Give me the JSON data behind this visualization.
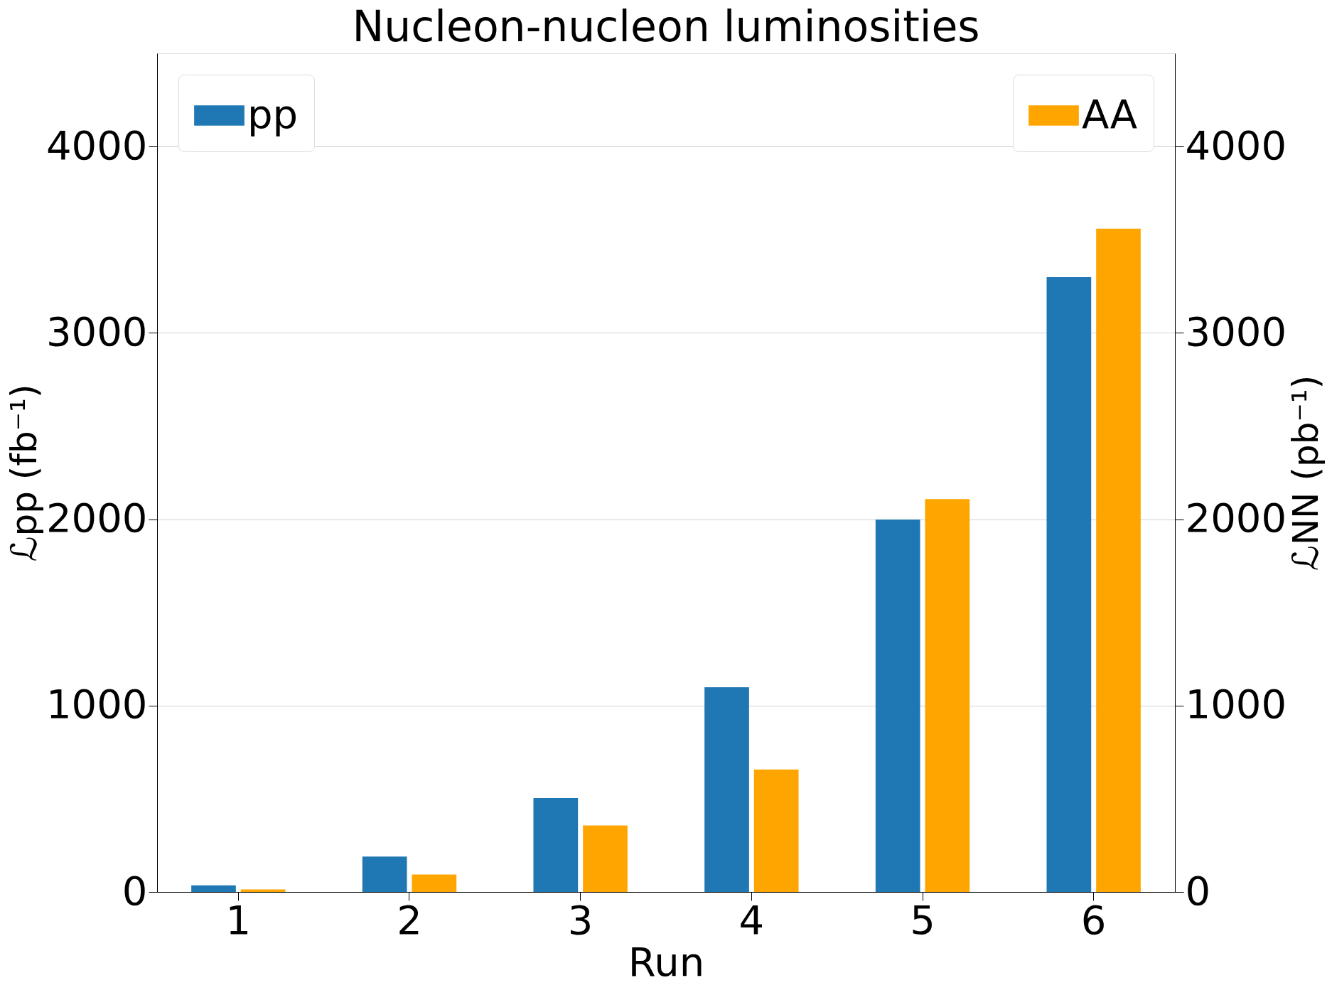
{
  "chart_data": {
    "type": "bar",
    "title": "Nucleon-nucleon luminosities",
    "xlabel": "Run",
    "ylabel": "ℒpp (fb⁻¹)",
    "y2label": "ℒNN (pb⁻¹)",
    "categories": [
      "1",
      "2",
      "3",
      "4",
      "5",
      "6"
    ],
    "series": [
      {
        "name": "pp",
        "color": "#1f77b4",
        "values": [
          35,
          190,
          503,
          1098,
          1998,
          3299
        ]
      },
      {
        "name": "AA",
        "color": "#ffa500",
        "axis": "y2",
        "values": [
          13,
          93,
          357,
          657,
          2108,
          3559
        ]
      }
    ],
    "ylim": [
      0,
      4500
    ],
    "yticks": [
      0,
      1000,
      2000,
      3000,
      4000
    ],
    "y2lim": [
      0,
      4500
    ],
    "y2ticks": [
      0,
      1000,
      2000,
      3000,
      4000
    ],
    "grid": "y",
    "legend": "top"
  }
}
